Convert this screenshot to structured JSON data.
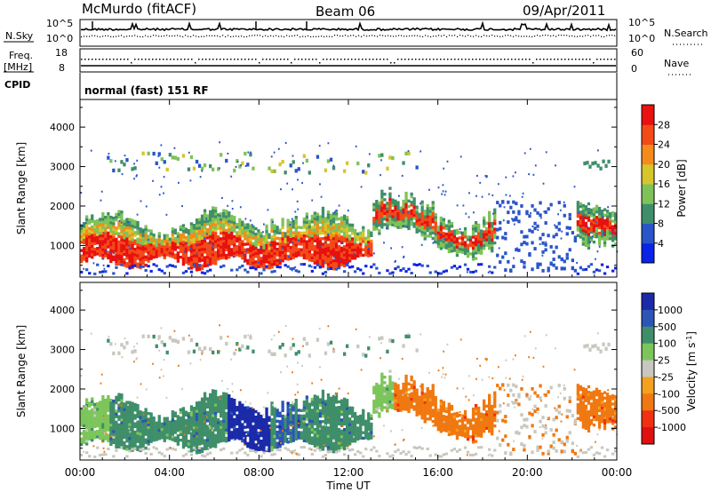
{
  "header": {
    "station": "McMurdo (fitACF)",
    "beam": "Beam 06",
    "date": "09/Apr/2011"
  },
  "noise_panel": {
    "left_label": "N.Sky",
    "right_label": "N.Search",
    "left_ticks": [
      "10^5",
      "10^0"
    ],
    "right_ticks": [
      "10^5",
      "10^0"
    ]
  },
  "freq_panel": {
    "left_label_line1": "Freq.",
    "left_label_line2": "[MHz]",
    "right_label": "Nave",
    "left_ticks": [
      "18",
      "8"
    ],
    "right_ticks": [
      "60",
      "0"
    ]
  },
  "cpid_panel": {
    "label": "CPID",
    "text": "normal (fast) 151 RF"
  },
  "chart_data": [
    {
      "type": "heatmap",
      "name": "power",
      "ylabel": "Slant Range [km]",
      "yticks": [
        "1000",
        "2000",
        "3000",
        "4000"
      ],
      "ylim": [
        200,
        4700
      ],
      "xlim": [
        0,
        24
      ],
      "colorbar_label": "Power [dB]",
      "colorbar_ticks": [
        "4",
        "8",
        "12",
        "16",
        "20",
        "24",
        "28"
      ],
      "colors": [
        "#0b22e8",
        "#2a55c8",
        "#3f8e6a",
        "#7fc25a",
        "#d7c52c",
        "#f58b1a",
        "#f24b18",
        "#e81010"
      ]
    },
    {
      "type": "heatmap",
      "name": "velocity",
      "ylabel": "Slant Range [km]",
      "yticks": [
        "1000",
        "2000",
        "3000",
        "4000"
      ],
      "ylim": [
        200,
        4700
      ],
      "xlim": [
        0,
        24
      ],
      "colorbar_label": "Velocity [m s-1]",
      "colorbar_ticks": [
        "1000",
        "500",
        "100",
        "25",
        "-25",
        "-100",
        "-500",
        "-1000"
      ],
      "colors": [
        "#1a2aa8",
        "#2c55b8",
        "#3f8e6a",
        "#7cc55a",
        "#c8c8c0",
        "#f4a020",
        "#f07810",
        "#f03010",
        "#e01010"
      ]
    }
  ],
  "xaxis": {
    "ticks": [
      "00:00",
      "04:00",
      "08:00",
      "12:00",
      "16:00",
      "20:00",
      "00:00"
    ],
    "label": "Time UT"
  }
}
